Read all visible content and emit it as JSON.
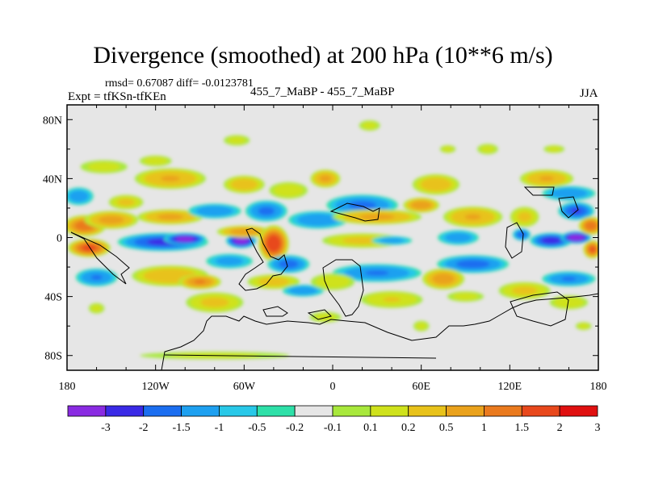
{
  "figure": {
    "title": "Divergence (smoothed) at 200 hPa (10**6 m/s)",
    "stats_text": "rmsd= 0.67087 diff= -0.0123781",
    "expt_text": "Expt = tfKSn-tfKEn",
    "run_text": "455_7_MaBP - 455_7_MaBP",
    "season": "JJA"
  },
  "colors": {
    "background": "#e6e6e6",
    "frame": "#000000",
    "palette": [
      "#8a2be2",
      "#3a2ae6",
      "#1b6ef0",
      "#1ea0f0",
      "#28c8e8",
      "#2ee0a8",
      "#e6e6e6",
      "#a8e83c",
      "#cfe21c",
      "#e8c21a",
      "#eaa21c",
      "#ea7a1e",
      "#e8481c",
      "#e01010"
    ]
  },
  "chart_data": {
    "type": "heatmap",
    "title": "Divergence (smoothed) at 200 hPa (10**6 m/s)",
    "x_axis": {
      "range": [
        -180,
        180
      ],
      "ticks": [
        -180,
        -120,
        -60,
        0,
        60,
        120,
        180
      ],
      "tick_labels": [
        "180",
        "120W",
        "60W",
        "0",
        "60E",
        "120E",
        "180"
      ]
    },
    "y_axis": {
      "range": [
        -90,
        90
      ],
      "ticks": [
        80,
        40,
        0,
        -40,
        -80
      ],
      "tick_labels": [
        "80N",
        "40N",
        "0",
        "40S",
        "80S"
      ]
    },
    "colorbar": {
      "levels": [
        -3,
        -2,
        -1.5,
        -1,
        -0.5,
        -0.2,
        -0.1,
        0.1,
        0.2,
        0.5,
        1,
        1.5,
        2,
        3
      ],
      "labels": [
        "-3",
        "-2",
        "-1.5",
        "-1",
        "-0.5",
        "-0.2",
        "-0.1",
        "0.1",
        "0.2",
        "0.5",
        "1",
        "1.5",
        "2",
        "3"
      ]
    },
    "features": [
      {
        "lon": -168,
        "lat": 8,
        "rx": 14,
        "ry": 7,
        "v": 1.8
      },
      {
        "lon": -150,
        "lat": 12,
        "rx": 18,
        "ry": 6,
        "v": 1.2
      },
      {
        "lon": -165,
        "lat": -7,
        "rx": 14,
        "ry": 6,
        "v": 2.1
      },
      {
        "lon": -160,
        "lat": -27,
        "rx": 14,
        "ry": 6,
        "v": -1.0
      },
      {
        "lon": -172,
        "lat": 28,
        "rx": 10,
        "ry": 6,
        "v": -0.8
      },
      {
        "lon": -140,
        "lat": 24,
        "rx": 12,
        "ry": 5,
        "v": 0.6
      },
      {
        "lon": -115,
        "lat": -3,
        "rx": 30,
        "ry": 6,
        "v": -1.6
      },
      {
        "lon": -100,
        "lat": -1,
        "rx": 14,
        "ry": 4,
        "v": -2.3
      },
      {
        "lon": -62,
        "lat": -2,
        "rx": 10,
        "ry": 5,
        "v": -2.4
      },
      {
        "lon": -110,
        "lat": 40,
        "rx": 24,
        "ry": 7,
        "v": 1.0
      },
      {
        "lon": -60,
        "lat": 36,
        "rx": 14,
        "ry": 6,
        "v": 0.8
      },
      {
        "lon": -110,
        "lat": 14,
        "rx": 22,
        "ry": 5,
        "v": 1.1
      },
      {
        "lon": -80,
        "lat": 18,
        "rx": 18,
        "ry": 5,
        "v": -0.9
      },
      {
        "lon": -60,
        "lat": 4,
        "rx": 18,
        "ry": 4,
        "v": 1.3
      },
      {
        "lon": -40,
        "lat": -4,
        "rx": 10,
        "ry": 12,
        "v": 2.4
      },
      {
        "lon": -45,
        "lat": 18,
        "rx": 14,
        "ry": 7,
        "v": -1.1
      },
      {
        "lon": -110,
        "lat": -26,
        "rx": 26,
        "ry": 7,
        "v": 0.9
      },
      {
        "lon": -90,
        "lat": -30,
        "rx": 14,
        "ry": 5,
        "v": 1.5
      },
      {
        "lon": -70,
        "lat": -16,
        "rx": 16,
        "ry": 5,
        "v": -0.7
      },
      {
        "lon": -80,
        "lat": -44,
        "rx": 20,
        "ry": 7,
        "v": 0.6
      },
      {
        "lon": -40,
        "lat": -30,
        "rx": 18,
        "ry": 5,
        "v": 0.7
      },
      {
        "lon": -30,
        "lat": -18,
        "rx": 14,
        "ry": 6,
        "v": -1.2
      },
      {
        "lon": -20,
        "lat": -36,
        "rx": 14,
        "ry": 4,
        "v": -0.9
      },
      {
        "lon": -5,
        "lat": 40,
        "rx": 10,
        "ry": 6,
        "v": 1.1
      },
      {
        "lon": -30,
        "lat": 32,
        "rx": 14,
        "ry": 6,
        "v": 0.4
      },
      {
        "lon": -10,
        "lat": 12,
        "rx": 20,
        "ry": 6,
        "v": -0.9
      },
      {
        "lon": 20,
        "lat": 22,
        "rx": 24,
        "ry": 7,
        "v": -1.1
      },
      {
        "lon": 30,
        "lat": 14,
        "rx": 30,
        "ry": 5,
        "v": 1.1
      },
      {
        "lon": 60,
        "lat": 22,
        "rx": 12,
        "ry": 5,
        "v": 1.4
      },
      {
        "lon": 70,
        "lat": 36,
        "rx": 16,
        "ry": 7,
        "v": 0.8
      },
      {
        "lon": 20,
        "lat": -2,
        "rx": 28,
        "ry": 5,
        "v": 0.6
      },
      {
        "lon": 40,
        "lat": -2,
        "rx": 14,
        "ry": 3,
        "v": -0.7
      },
      {
        "lon": 95,
        "lat": 14,
        "rx": 20,
        "ry": 7,
        "v": 1.0
      },
      {
        "lon": 85,
        "lat": 0,
        "rx": 14,
        "ry": 5,
        "v": -0.8
      },
      {
        "lon": 95,
        "lat": -18,
        "rx": 24,
        "ry": 6,
        "v": -1.2
      },
      {
        "lon": 75,
        "lat": -28,
        "rx": 14,
        "ry": 7,
        "v": 1.3
      },
      {
        "lon": 30,
        "lat": -24,
        "rx": 30,
        "ry": 6,
        "v": -1.0
      },
      {
        "lon": 0,
        "lat": -30,
        "rx": 16,
        "ry": 6,
        "v": 0.4
      },
      {
        "lon": 40,
        "lat": -42,
        "rx": 22,
        "ry": 6,
        "v": 0.5
      },
      {
        "lon": 90,
        "lat": -40,
        "rx": 14,
        "ry": 4,
        "v": 0.3
      },
      {
        "lon": 128,
        "lat": 2,
        "rx": 6,
        "ry": 4,
        "v": -1.3
      },
      {
        "lon": 130,
        "lat": 14,
        "rx": 10,
        "ry": 7,
        "v": 0.6
      },
      {
        "lon": 148,
        "lat": -2,
        "rx": 14,
        "ry": 5,
        "v": -1.8
      },
      {
        "lon": 165,
        "lat": 0,
        "rx": 10,
        "ry": 4,
        "v": -2.6
      },
      {
        "lon": 165,
        "lat": 18,
        "rx": 12,
        "ry": 6,
        "v": -1.5
      },
      {
        "lon": 175,
        "lat": 8,
        "rx": 8,
        "ry": 6,
        "v": 1.9
      },
      {
        "lon": 176,
        "lat": -8,
        "rx": 6,
        "ry": 6,
        "v": 2.0
      },
      {
        "lon": 160,
        "lat": -28,
        "rx": 18,
        "ry": 5,
        "v": -1.0
      },
      {
        "lon": 160,
        "lat": 30,
        "rx": 18,
        "ry": 5,
        "v": -0.9
      },
      {
        "lon": 145,
        "lat": 40,
        "rx": 18,
        "ry": 6,
        "v": 1.0
      },
      {
        "lon": 130,
        "lat": -36,
        "rx": 18,
        "ry": 6,
        "v": 0.6
      },
      {
        "lon": 160,
        "lat": -44,
        "rx": 14,
        "ry": 5,
        "v": 0.4
      },
      {
        "lon": -155,
        "lat": 48,
        "rx": 18,
        "ry": 5,
        "v": 0.3
      },
      {
        "lon": -120,
        "lat": 52,
        "rx": 12,
        "ry": 4,
        "v": 0.35
      },
      {
        "lon": -65,
        "lat": 66,
        "rx": 10,
        "ry": 4,
        "v": 0.3
      },
      {
        "lon": 25,
        "lat": 76,
        "rx": 8,
        "ry": 4,
        "v": 0.3
      },
      {
        "lon": 78,
        "lat": 60,
        "rx": 6,
        "ry": 3,
        "v": 0.3
      },
      {
        "lon": 105,
        "lat": 60,
        "rx": 8,
        "ry": 4,
        "v": 0.3
      },
      {
        "lon": 150,
        "lat": 60,
        "rx": 8,
        "ry": 3,
        "v": 0.3
      },
      {
        "lon": -160,
        "lat": -48,
        "rx": 6,
        "ry": 4,
        "v": 0.3
      },
      {
        "lon": -5,
        "lat": -54,
        "rx": 12,
        "ry": 4,
        "v": 0.3
      },
      {
        "lon": 60,
        "lat": -60,
        "rx": 6,
        "ry": 4,
        "v": 0.3
      },
      {
        "lon": 170,
        "lat": -60,
        "rx": 6,
        "ry": 3,
        "v": 0.3
      },
      {
        "lon": -80,
        "lat": -80,
        "rx": 60,
        "ry": 3,
        "v": 0.25
      }
    ]
  }
}
